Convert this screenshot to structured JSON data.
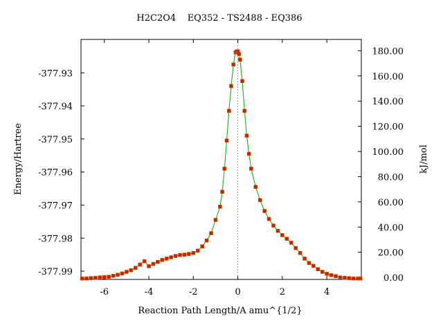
{
  "chart_data": {
    "type": "scatter",
    "title": "H2C2O4    EQ352 - TS2488 - EQ386",
    "xlabel": "Reaction Path Length/A amu^{1/2}",
    "ylabel": "Energy/Hartree",
    "y2label": "kJ/mol",
    "xlim": [
      -7.05,
      5.55
    ],
    "ylim": [
      -377.9925,
      -377.9199
    ],
    "y2lim": [
      -1.6,
      189.0
    ],
    "x_ticks": [
      -6,
      -4,
      -2,
      0,
      2,
      4
    ],
    "x_tick_labels": [
      "-6",
      "-4",
      "-2",
      "0",
      "2",
      "4"
    ],
    "y_ticks": [
      -377.93,
      -377.94,
      -377.95,
      -377.96,
      -377.97,
      -377.98,
      -377.99
    ],
    "y_tick_labels": [
      "-377.93",
      "-377.94",
      "-377.95",
      "-377.96",
      "-377.97",
      "-377.98",
      "-377.99"
    ],
    "y2_ticks": [
      0,
      20,
      40,
      60,
      80,
      100,
      120,
      140,
      160,
      180
    ],
    "y2_tick_labels": [
      "0.00",
      "20.00",
      "40.00",
      "60.00",
      "80.00",
      "100.00",
      "120.00",
      "140.00",
      "160.00",
      "180.00"
    ],
    "ts_x": 0,
    "colors": {
      "line": "#00aa00",
      "marker": "#cc2200",
      "marker_edge": "#cc5500",
      "ts_line": "#999999"
    },
    "series": [
      {
        "x": [
          -7.0,
          -6.8,
          -6.6,
          -6.4,
          -6.2,
          -6.0,
          -5.8,
          -5.6,
          -5.4,
          -5.2,
          -5.0,
          -4.8,
          -4.6,
          -4.4,
          -4.2,
          -4.0,
          -3.8,
          -3.6,
          -3.4,
          -3.2,
          -3.0,
          -2.8,
          -2.6,
          -2.4,
          -2.2,
          -2.0,
          -1.8,
          -1.6,
          -1.4,
          -1.2,
          -1.0,
          -0.8,
          -0.7,
          -0.6,
          -0.5,
          -0.4,
          -0.3,
          -0.2,
          -0.1,
          -0.05,
          0.0,
          0.05,
          0.1,
          0.2,
          0.3,
          0.4,
          0.5,
          0.6,
          0.8,
          1.0,
          1.2,
          1.4,
          1.6,
          1.8,
          2.0,
          2.2,
          2.4,
          2.6,
          2.8,
          3.0,
          3.2,
          3.4,
          3.6,
          3.8,
          4.0,
          4.2,
          4.4,
          4.6,
          4.8,
          5.0,
          5.2,
          5.4,
          5.5
        ],
        "y": [
          -377.9922,
          -377.9922,
          -377.9921,
          -377.992,
          -377.9919,
          -377.9918,
          -377.9917,
          -377.9914,
          -377.9911,
          -377.9907,
          -377.9902,
          -377.9897,
          -377.989,
          -377.988,
          -377.987,
          -377.9885,
          -377.9878,
          -377.9872,
          -377.9866,
          -377.9862,
          -377.9858,
          -377.9854,
          -377.9851,
          -377.985,
          -377.9848,
          -377.9845,
          -377.9838,
          -377.9825,
          -377.9807,
          -377.9785,
          -377.9745,
          -377.9705,
          -377.966,
          -377.959,
          -377.9505,
          -377.9415,
          -377.934,
          -377.9275,
          -377.9238,
          -377.9235,
          -377.9235,
          -377.9243,
          -377.926,
          -377.9325,
          -377.9415,
          -377.949,
          -377.9545,
          -377.959,
          -377.9645,
          -377.9685,
          -377.9718,
          -377.9742,
          -377.9762,
          -377.9778,
          -377.9791,
          -377.9802,
          -377.9814,
          -377.983,
          -377.9845,
          -377.9862,
          -377.9875,
          -377.9884,
          -377.9894,
          -377.9902,
          -377.9908,
          -377.9912,
          -377.9915,
          -377.9919,
          -377.992,
          -377.9921,
          -377.9922,
          -377.9922,
          -377.9922
        ]
      }
    ]
  }
}
